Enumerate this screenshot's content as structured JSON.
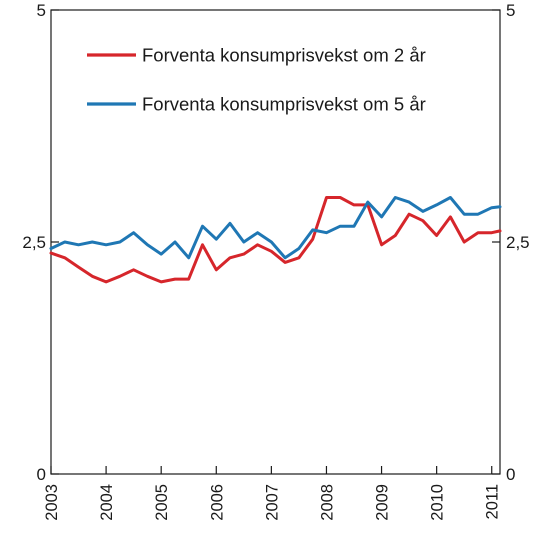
{
  "chart_data": {
    "type": "line",
    "title": "",
    "xlabel": "",
    "ylabel": "",
    "ylim": [
      0,
      5
    ],
    "xlim": [
      2003.0,
      2011.15
    ],
    "y_ticks": [
      {
        "value": 0,
        "label": "0"
      },
      {
        "value": 2.5,
        "label": "2,5"
      },
      {
        "value": 5,
        "label": "5"
      }
    ],
    "x_ticks": [
      {
        "value": 2003,
        "label": "2003"
      },
      {
        "value": 2004,
        "label": "2004"
      },
      {
        "value": 2005,
        "label": "2005"
      },
      {
        "value": 2006,
        "label": "2006"
      },
      {
        "value": 2007,
        "label": "2007"
      },
      {
        "value": 2008,
        "label": "2008"
      },
      {
        "value": 2009,
        "label": "2009"
      },
      {
        "value": 2010,
        "label": "2010"
      },
      {
        "value": 2011,
        "label": "2011"
      }
    ],
    "grid": false,
    "legend_position": "top-left inside",
    "x": [
      2003.0,
      2003.25,
      2003.5,
      2003.75,
      2004.0,
      2004.25,
      2004.5,
      2004.75,
      2005.0,
      2005.25,
      2005.5,
      2005.75,
      2006.0,
      2006.25,
      2006.5,
      2006.75,
      2007.0,
      2007.25,
      2007.5,
      2007.75,
      2008.0,
      2008.25,
      2008.5,
      2008.75,
      2009.0,
      2009.25,
      2009.5,
      2009.75,
      2010.0,
      2010.25,
      2010.5,
      2010.75,
      2011.0,
      2011.15
    ],
    "series": [
      {
        "name": "Forventa konsumprisvekst om 2 år",
        "color": "#d6262b",
        "values": [
          2.38,
          2.33,
          2.23,
          2.13,
          2.07,
          2.13,
          2.2,
          2.13,
          2.07,
          2.1,
          2.1,
          2.47,
          2.2,
          2.33,
          2.37,
          2.47,
          2.4,
          2.28,
          2.33,
          2.53,
          2.98,
          2.98,
          2.9,
          2.9,
          2.47,
          2.57,
          2.8,
          2.73,
          2.57,
          2.77,
          2.5,
          2.6,
          2.6,
          2.62
        ]
      },
      {
        "name": "Forventa konsumprisvekst om 5 år",
        "color": "#1f77b4",
        "values": [
          2.43,
          2.5,
          2.47,
          2.5,
          2.47,
          2.5,
          2.6,
          2.47,
          2.37,
          2.5,
          2.33,
          2.67,
          2.53,
          2.7,
          2.5,
          2.6,
          2.5,
          2.33,
          2.43,
          2.63,
          2.6,
          2.67,
          2.67,
          2.93,
          2.77,
          2.98,
          2.93,
          2.83,
          2.9,
          2.98,
          2.8,
          2.8,
          2.87,
          2.88
        ]
      }
    ]
  }
}
